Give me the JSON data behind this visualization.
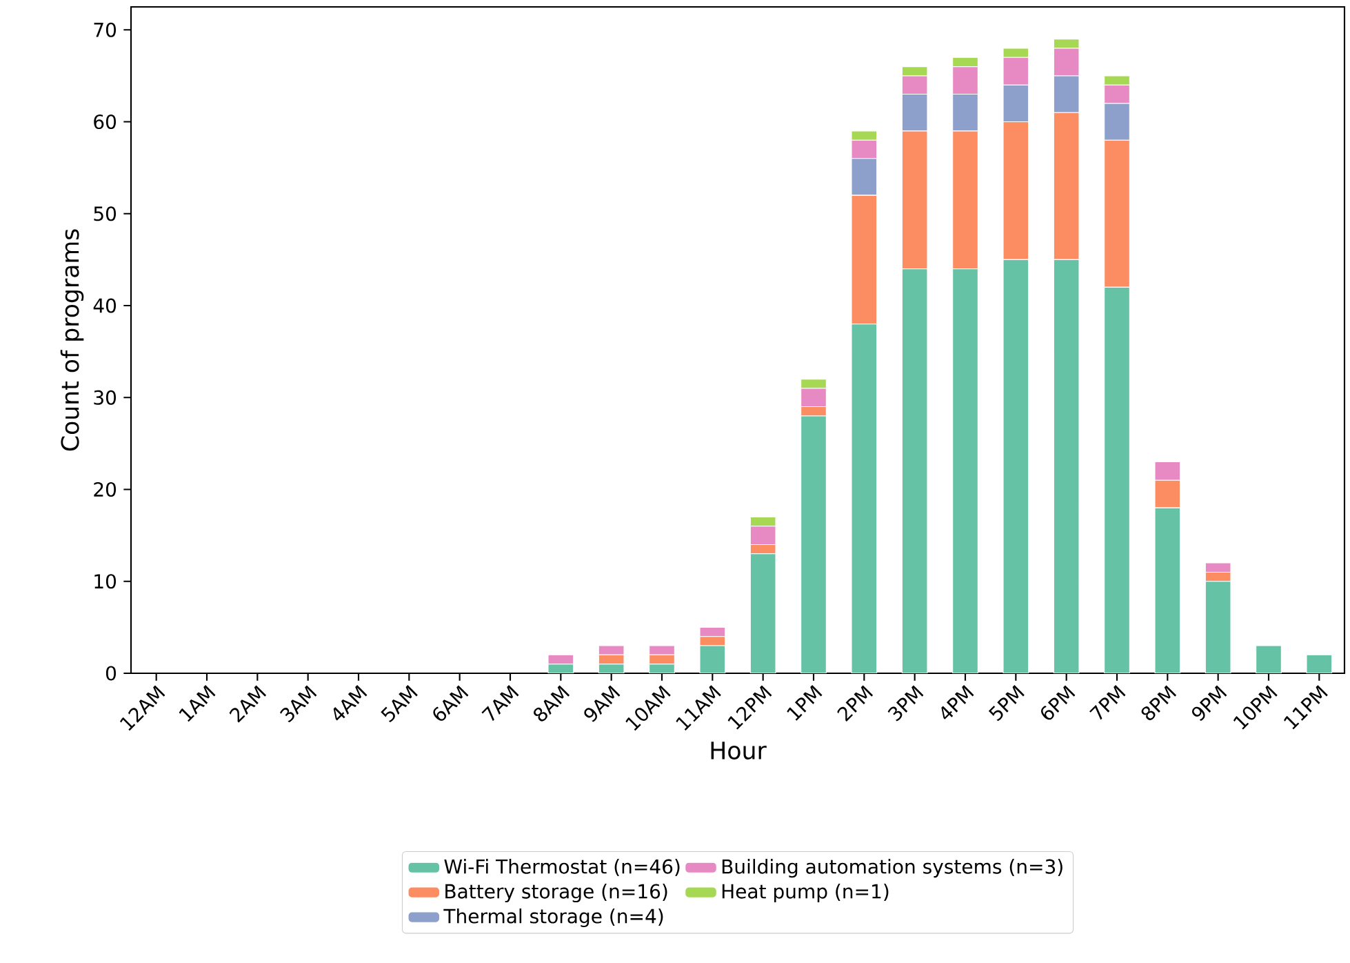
{
  "chart_data": {
    "type": "bar",
    "stacked": true,
    "xlabel": "Hour",
    "ylabel": "Count of programs",
    "categories": [
      "12AM",
      "1AM",
      "2AM",
      "3AM",
      "4AM",
      "5AM",
      "6AM",
      "7AM",
      "8AM",
      "9AM",
      "10AM",
      "11AM",
      "12PM",
      "1PM",
      "2PM",
      "3PM",
      "4PM",
      "5PM",
      "6PM",
      "7PM",
      "8PM",
      "9PM",
      "10PM",
      "11PM"
    ],
    "series": [
      {
        "name": "Wi-Fi Thermostat (n=46)",
        "color": "#66c2a5",
        "values": [
          0,
          0,
          0,
          0,
          0,
          0,
          0,
          0,
          1,
          1,
          1,
          3,
          13,
          28,
          38,
          44,
          44,
          45,
          45,
          42,
          18,
          10,
          3,
          2
        ]
      },
      {
        "name": "Battery storage (n=16)",
        "color": "#fc8d62",
        "values": [
          0,
          0,
          0,
          0,
          0,
          0,
          0,
          0,
          0,
          1,
          1,
          1,
          1,
          1,
          14,
          15,
          15,
          15,
          16,
          16,
          3,
          1,
          0,
          0
        ]
      },
      {
        "name": "Thermal storage (n=4)",
        "color": "#8da0cb",
        "values": [
          0,
          0,
          0,
          0,
          0,
          0,
          0,
          0,
          0,
          0,
          0,
          0,
          0,
          0,
          4,
          4,
          4,
          4,
          4,
          4,
          0,
          0,
          0,
          0
        ]
      },
      {
        "name": "Building automation systems (n=3)",
        "color": "#e78ac3",
        "values": [
          0,
          0,
          0,
          0,
          0,
          0,
          0,
          0,
          1,
          1,
          1,
          1,
          2,
          2,
          2,
          2,
          3,
          3,
          3,
          2,
          2,
          1,
          0,
          0
        ]
      },
      {
        "name": "Heat pump (n=1)",
        "color": "#a6d854",
        "values": [
          0,
          0,
          0,
          0,
          0,
          0,
          0,
          0,
          0,
          0,
          0,
          0,
          1,
          1,
          1,
          1,
          1,
          1,
          1,
          1,
          0,
          0,
          0,
          0
        ]
      }
    ],
    "ylim": [
      0,
      72.5
    ],
    "yticks": [
      0,
      10,
      20,
      30,
      40,
      50,
      60,
      70
    ],
    "legend": "bottom",
    "grid": false
  }
}
